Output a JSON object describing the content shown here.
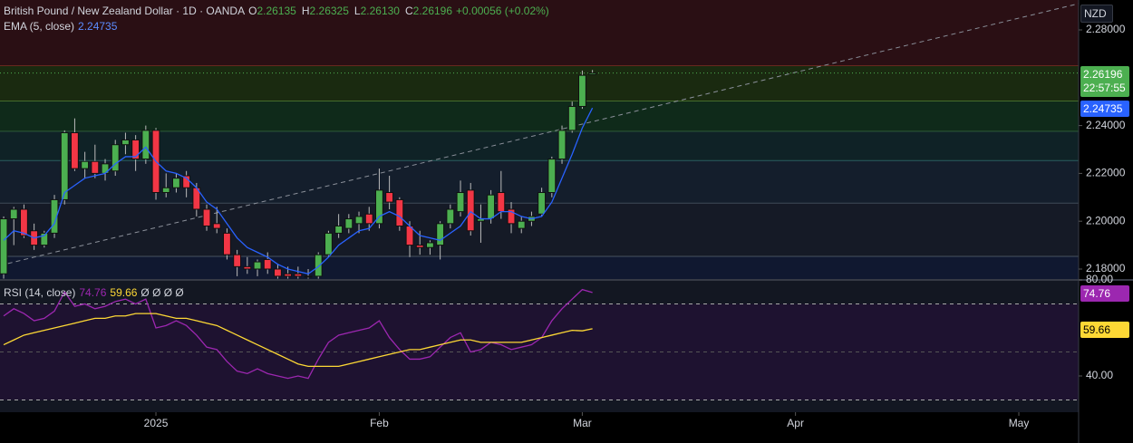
{
  "chart_data": [
    {
      "type": "candlestick",
      "title": "British Pound / New Zealand Dollar · 1D · OANDA",
      "header": [
        {
          "key": "O",
          "value": "2.26135"
        },
        {
          "key": "H",
          "value": "2.26325"
        },
        {
          "key": "L",
          "value": "2.26130"
        },
        {
          "key": "C",
          "value": "2.26196"
        }
      ],
      "change": "+0.00056 (+0.02%)",
      "currency": "NZD",
      "countdown": "22:57:55",
      "x": [
        -15,
        -14,
        -13,
        -12,
        -11,
        -10,
        -9,
        -8,
        -7,
        -6,
        -5,
        -4,
        -3,
        -2,
        -1,
        0,
        1,
        2,
        3,
        4,
        5,
        6,
        7,
        8,
        9,
        10,
        11,
        12,
        13,
        14,
        15,
        16,
        17,
        18,
        19,
        20,
        21,
        22,
        23,
        24,
        25,
        26,
        27,
        28,
        29,
        30,
        31,
        32,
        33,
        34,
        35,
        36,
        37,
        38,
        39,
        40,
        41,
        42,
        43
      ],
      "open": [
        2.178,
        2.201,
        2.205,
        2.196,
        2.19,
        2.195,
        2.209,
        2.237,
        2.222,
        2.225,
        2.22,
        2.221,
        2.232,
        2.234,
        2.226,
        2.238,
        2.212,
        2.214,
        2.219,
        2.214,
        2.205,
        2.199,
        2.195,
        2.186,
        2.181,
        2.18,
        2.184,
        2.18,
        2.178,
        2.178,
        2.177,
        2.177,
        2.186,
        2.195,
        2.197,
        2.199,
        2.203,
        2.199,
        2.212,
        2.209,
        2.198,
        2.19,
        2.189,
        2.19,
        2.199,
        2.204,
        2.213,
        2.2,
        2.201,
        2.212,
        2.205,
        2.197,
        2.2,
        2.203,
        2.212,
        2.226,
        2.238,
        2.248,
        2.26135
      ],
      "high": [
        2.202,
        2.206,
        2.207,
        2.199,
        2.196,
        2.211,
        2.238,
        2.243,
        2.229,
        2.232,
        2.226,
        2.234,
        2.237,
        2.236,
        2.24,
        2.239,
        2.22,
        2.22,
        2.221,
        2.216,
        2.207,
        2.206,
        2.197,
        2.188,
        2.185,
        2.184,
        2.187,
        2.182,
        2.181,
        2.181,
        2.18,
        2.187,
        2.196,
        2.203,
        2.203,
        2.204,
        2.206,
        2.222,
        2.219,
        2.21,
        2.2,
        2.196,
        2.192,
        2.2,
        2.207,
        2.217,
        2.216,
        2.207,
        2.213,
        2.221,
        2.208,
        2.202,
        2.204,
        2.214,
        2.227,
        2.24,
        2.25,
        2.263,
        2.26325
      ],
      "low": [
        2.176,
        2.19,
        2.193,
        2.188,
        2.189,
        2.193,
        2.207,
        2.221,
        2.218,
        2.218,
        2.217,
        2.219,
        2.228,
        2.221,
        2.224,
        2.209,
        2.21,
        2.212,
        2.21,
        2.202,
        2.196,
        2.195,
        2.184,
        2.177,
        2.178,
        2.177,
        2.178,
        2.176,
        2.176,
        2.176,
        2.176,
        2.176,
        2.185,
        2.193,
        2.195,
        2.195,
        2.196,
        2.197,
        2.205,
        2.196,
        2.185,
        2.186,
        2.186,
        2.184,
        2.197,
        2.202,
        2.194,
        2.191,
        2.199,
        2.201,
        2.195,
        2.195,
        2.198,
        2.202,
        2.21,
        2.224,
        2.237,
        2.247,
        2.2613
      ],
      "close": [
        2.201,
        2.205,
        2.194,
        2.19,
        2.195,
        2.209,
        2.237,
        2.222,
        2.225,
        2.22,
        2.224,
        2.232,
        2.234,
        2.226,
        2.238,
        2.212,
        2.214,
        2.218,
        2.214,
        2.205,
        2.198,
        2.197,
        2.186,
        2.181,
        2.18,
        2.183,
        2.18,
        2.177,
        2.177,
        2.177,
        2.177,
        2.186,
        2.195,
        2.198,
        2.201,
        2.202,
        2.199,
        2.213,
        2.208,
        2.198,
        2.19,
        2.189,
        2.191,
        2.199,
        2.205,
        2.212,
        2.196,
        2.201,
        2.211,
        2.204,
        2.199,
        2.2,
        2.202,
        2.212,
        2.226,
        2.238,
        2.248,
        2.261,
        2.26196
      ],
      "up_color": "#4caf50",
      "down_color": "#f23645",
      "ema": {
        "name": "EMA (5, close)",
        "color": "#2962ff",
        "values": [
          2.192,
          2.196,
          2.195,
          2.193,
          2.194,
          2.199,
          2.212,
          2.215,
          2.218,
          2.219,
          2.22,
          2.224,
          2.227,
          2.227,
          2.231,
          2.225,
          2.221,
          2.22,
          2.218,
          2.214,
          2.208,
          2.205,
          2.199,
          2.193,
          2.189,
          2.187,
          2.185,
          2.182,
          2.18,
          2.179,
          2.178,
          2.181,
          2.185,
          2.19,
          2.193,
          2.196,
          2.197,
          2.202,
          2.204,
          2.202,
          2.198,
          2.194,
          2.193,
          2.192,
          2.195,
          2.198,
          2.204,
          2.201,
          2.201,
          2.204,
          2.204,
          2.202,
          2.201,
          2.202,
          2.208,
          2.218,
          2.228,
          2.239,
          2.24735
        ]
      },
      "levels": [
        2.265,
        2.2502,
        2.2375,
        2.2253,
        2.2075,
        2.1852
      ],
      "xlim": [
        -15.36,
        90.89
      ],
      "ylim": [
        2.17583,
        2.2925
      ],
      "yticks": [
        {
          "value": 2.18,
          "label": "2.18000"
        },
        {
          "value": 2.2,
          "label": "2.20000"
        },
        {
          "value": 2.22,
          "label": "2.22000"
        },
        {
          "value": 2.24,
          "label": "2.24000"
        },
        {
          "value": 2.28,
          "label": "2.28000"
        }
      ],
      "xticks": [
        {
          "value": 0,
          "label": "2025"
        },
        {
          "value": 22,
          "label": "Feb"
        },
        {
          "value": 42,
          "label": "Mar"
        },
        {
          "value": 63,
          "label": "Apr"
        },
        {
          "value": 85,
          "label": "May"
        }
      ]
    },
    {
      "type": "line",
      "title": "RSI (14, close)",
      "extra": "Ø Ø Ø Ø",
      "series": [
        {
          "name": "RSI",
          "color": "#9c27b0",
          "values": [
            65,
            68,
            66,
            63,
            64,
            67,
            75,
            69,
            70,
            68,
            69,
            71,
            72,
            70,
            72,
            60,
            61,
            63,
            61,
            57,
            52,
            51,
            46,
            42,
            41,
            43,
            41,
            40,
            39,
            40,
            39,
            47,
            54,
            57,
            58,
            59,
            60,
            63,
            56,
            51,
            47,
            47,
            48,
            52,
            56,
            58,
            50,
            51,
            54,
            53,
            51,
            52,
            53,
            56,
            63,
            68,
            72,
            76,
            74.76
          ]
        },
        {
          "name": "RSI MA",
          "color": "#fdd835",
          "values": [
            53,
            55,
            57,
            58,
            59,
            60,
            61,
            62,
            63,
            64,
            64,
            65,
            65,
            66,
            66,
            66,
            65,
            64,
            64,
            63,
            62,
            61,
            59,
            57,
            55,
            53,
            51,
            49,
            47,
            45,
            44,
            44,
            44,
            44,
            45,
            46,
            47,
            48,
            49,
            50,
            51,
            51,
            52,
            53,
            54,
            55,
            55,
            54,
            54,
            54,
            54,
            54,
            55,
            56,
            57,
            58,
            59,
            58.8,
            59.66
          ]
        }
      ],
      "levels": [
        70,
        50,
        30
      ],
      "ylim": [
        24.9,
        80
      ],
      "yticks": [
        {
          "value": 40,
          "label": "40.00"
        },
        {
          "value": 80,
          "label": "80.00"
        }
      ]
    }
  ]
}
